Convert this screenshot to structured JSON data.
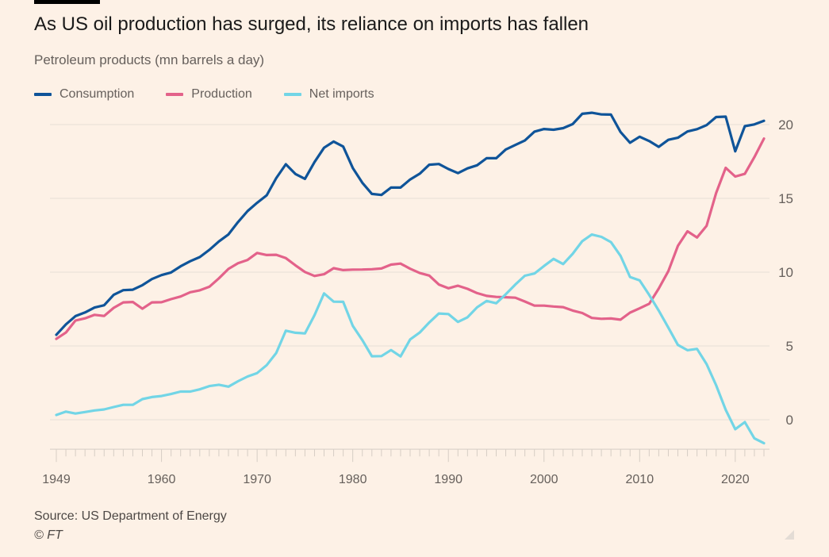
{
  "title": "As US oil production has surged, its reliance on imports has fallen",
  "subtitle": "Petroleum products (mn barrels a day)",
  "source": "Source: US Department of Energy",
  "credit": "© FT",
  "colors": {
    "background": "#fdf1e6",
    "consumption": "#0f5499",
    "production": "#e3628a",
    "net_imports": "#72d5e6"
  },
  "chart_data": {
    "type": "line",
    "title": "As US oil production has surged, its reliance on imports has fallen",
    "ylabel": "Petroleum products (mn barrels a day)",
    "legend": "top-left",
    "grid": true,
    "xlim": [
      1949,
      2023
    ],
    "ylim": [
      -2,
      20
    ],
    "x_ticks": [
      "1949",
      "1960",
      "1970",
      "1980",
      "1990",
      "2000",
      "2010",
      "2020"
    ],
    "y_ticks": [
      "20",
      "15",
      "10",
      "5",
      "0"
    ],
    "y_axis_side": "right",
    "x_start": 1949,
    "series": [
      {
        "name": "Consumption",
        "color": "#0f5499",
        "values": [
          5.76,
          6.46,
          7.02,
          7.27,
          7.6,
          7.76,
          8.46,
          8.78,
          8.81,
          9.12,
          9.53,
          9.8,
          9.98,
          10.4,
          10.74,
          11.02,
          11.51,
          12.08,
          12.56,
          13.39,
          14.14,
          14.7,
          15.21,
          16.37,
          17.31,
          16.65,
          16.32,
          17.46,
          18.43,
          18.85,
          18.51,
          17.06,
          16.06,
          15.3,
          15.23,
          15.73,
          15.73,
          16.28,
          16.67,
          17.28,
          17.33,
          16.99,
          16.71,
          17.03,
          17.24,
          17.72,
          17.72,
          18.31,
          18.62,
          18.92,
          19.52,
          19.7,
          19.65,
          19.76,
          20.03,
          20.73,
          20.8,
          20.69,
          20.68,
          19.5,
          18.77,
          19.18,
          18.88,
          18.49,
          18.97,
          19.11,
          19.53,
          19.69,
          19.96,
          20.51,
          20.54,
          18.19,
          19.89,
          20.01,
          20.25
        ]
      },
      {
        "name": "Production",
        "color": "#e3628a",
        "values": [
          5.48,
          5.91,
          6.72,
          6.87,
          7.11,
          7.03,
          7.58,
          7.95,
          7.98,
          7.52,
          7.95,
          7.96,
          8.17,
          8.35,
          8.64,
          8.77,
          9.01,
          9.58,
          10.22,
          10.6,
          10.83,
          11.3,
          11.16,
          11.18,
          10.95,
          10.46,
          10.01,
          9.74,
          9.86,
          10.27,
          10.14,
          10.17,
          10.18,
          10.2,
          10.25,
          10.51,
          10.58,
          10.23,
          9.94,
          9.77,
          9.16,
          8.91,
          9.08,
          8.87,
          8.58,
          8.39,
          8.32,
          8.3,
          8.27,
          8.01,
          7.73,
          7.73,
          7.67,
          7.63,
          7.4,
          7.23,
          6.9,
          6.84,
          6.86,
          6.78,
          7.26,
          7.55,
          7.86,
          8.89,
          10.07,
          11.78,
          12.77,
          12.35,
          13.14,
          15.36,
          17.07,
          16.48,
          16.66,
          17.79,
          19.05
        ]
      },
      {
        "name": "Net imports",
        "color": "#72d5e6",
        "values": [
          0.32,
          0.55,
          0.42,
          0.52,
          0.63,
          0.7,
          0.86,
          1.01,
          1.01,
          1.4,
          1.54,
          1.61,
          1.74,
          1.91,
          1.91,
          2.06,
          2.28,
          2.37,
          2.24,
          2.61,
          2.93,
          3.16,
          3.7,
          4.52,
          6.03,
          5.89,
          5.85,
          7.09,
          8.56,
          8.0,
          7.99,
          6.36,
          5.4,
          4.3,
          4.31,
          4.72,
          4.29,
          5.44,
          5.91,
          6.59,
          7.2,
          7.16,
          6.63,
          6.94,
          7.62,
          8.05,
          7.89,
          8.5,
          9.16,
          9.76,
          9.91,
          10.42,
          10.9,
          10.55,
          11.24,
          12.1,
          12.55,
          12.39,
          12.04,
          11.11,
          9.67,
          9.44,
          8.45,
          7.39,
          6.24,
          5.07,
          4.71,
          4.8,
          3.77,
          2.34,
          0.67,
          -0.64,
          -0.16,
          -1.26,
          -1.59
        ]
      }
    ]
  }
}
